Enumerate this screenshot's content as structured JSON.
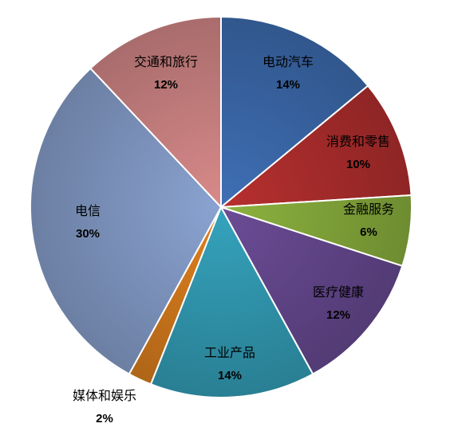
{
  "chart_data": {
    "type": "pie",
    "title": "",
    "start": "top",
    "direction": "clockwise",
    "legend": "none",
    "slices": [
      {
        "label": "电动汽车",
        "value": 14,
        "value_label": "14%",
        "color": "#3f6fb5"
      },
      {
        "label": "消费和零售",
        "value": 10,
        "value_label": "10%",
        "color": "#b7302f"
      },
      {
        "label": "金融服务",
        "value": 6,
        "value_label": "6%",
        "color": "#8db33f"
      },
      {
        "label": "医疗健康",
        "value": 12,
        "value_label": "12%",
        "color": "#6b4c96"
      },
      {
        "label": "工业产品",
        "value": 14,
        "value_label": "14%",
        "color": "#35a3bd"
      },
      {
        "label": "媒体和娱乐",
        "value": 2,
        "value_label": "2%",
        "color": "#e0811f"
      },
      {
        "label": "电信",
        "value": 30,
        "value_label": "30%",
        "color": "#8aa3d1"
      },
      {
        "label": "交通和旅行",
        "value": 12,
        "value_label": "12%",
        "color": "#d98a8a"
      }
    ]
  }
}
